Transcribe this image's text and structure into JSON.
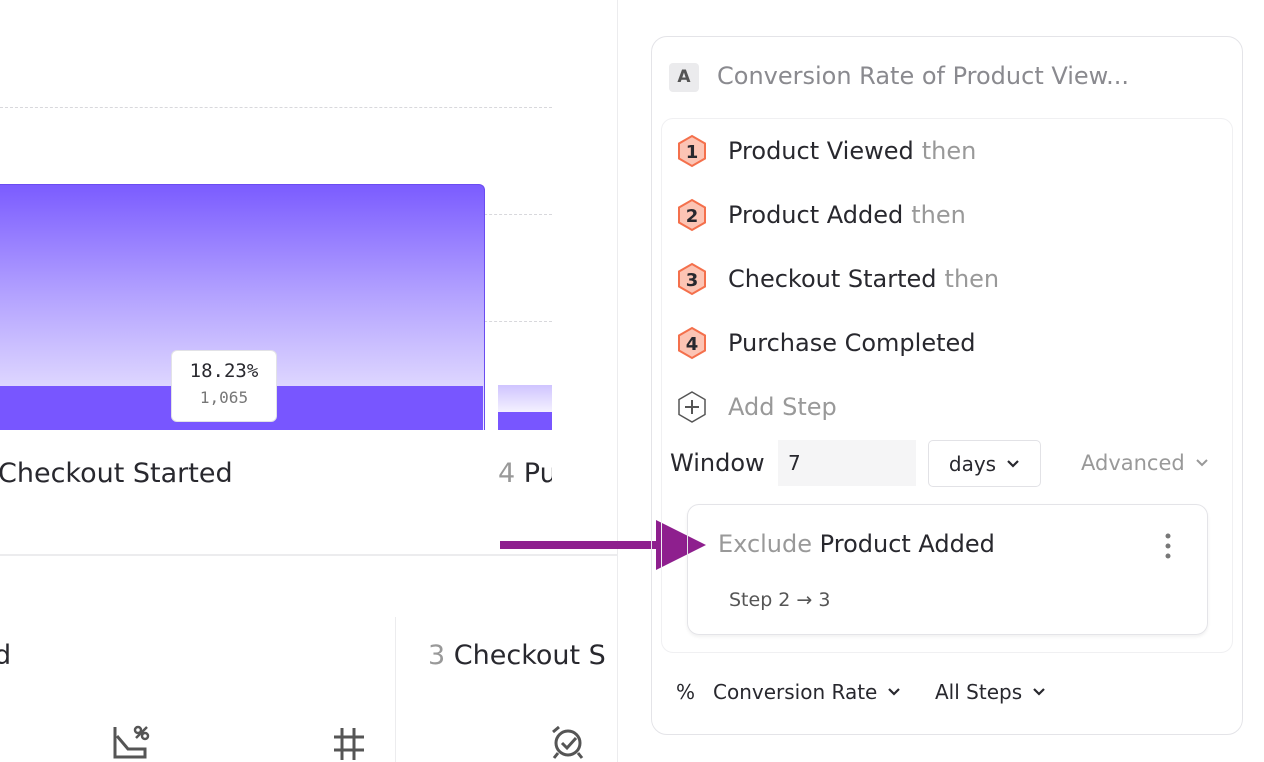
{
  "chart": {
    "bar_label": "Checkout Started",
    "bar_percent": "18.23%",
    "bar_count": "1,065",
    "next_step_number": "4",
    "next_step_label": "Pu",
    "colors": {
      "bar": "#7856ff",
      "arrow": "#8e1f8e"
    }
  },
  "cards": [
    {
      "label": "d"
    },
    {
      "number": "3",
      "label": "Checkout S"
    }
  ],
  "card_icons": [
    "conversion-chart-icon",
    "hash-icon",
    "alarm-check-icon"
  ],
  "panel": {
    "badge": "A",
    "title": "Conversion Rate of Product View...",
    "steps": [
      {
        "n": "1",
        "name": "Product Viewed",
        "suffix": "then"
      },
      {
        "n": "2",
        "name": "Product Added",
        "suffix": "then"
      },
      {
        "n": "3",
        "name": "Checkout Started",
        "suffix": "then"
      },
      {
        "n": "4",
        "name": "Purchase Completed",
        "suffix": ""
      }
    ],
    "add_step": "Add Step",
    "window_label": "Window",
    "window_value": "7",
    "window_unit": "days",
    "advanced": "Advanced",
    "exclusion": {
      "prefix": "Exclude",
      "event": "Product Added",
      "range": "Step 2 → 3"
    },
    "metric_symbol": "%",
    "metric": "Conversion Rate",
    "steps_scope": "All Steps"
  }
}
